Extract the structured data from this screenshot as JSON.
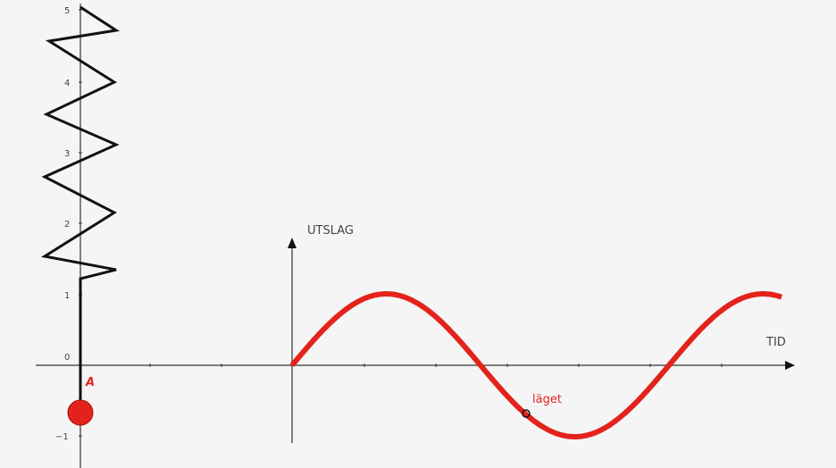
{
  "spring_axis": {
    "tick_labels": [
      "5",
      "4",
      "3",
      "2",
      "1",
      "0",
      "−1"
    ]
  },
  "graph": {
    "y_axis_label": "UTSLAG",
    "x_axis_label": "TID",
    "curve": "sine",
    "amplitude": 1,
    "point_label": "läget"
  },
  "mass": {
    "label": "A",
    "color": "#e3231b"
  },
  "colors": {
    "curve": "#e3231b",
    "spring": "#111111",
    "axes": "#222222"
  }
}
